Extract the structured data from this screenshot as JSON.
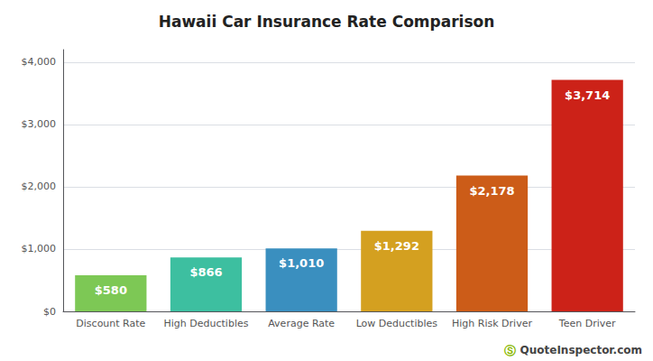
{
  "chart_data": {
    "type": "bar",
    "title": "Hawaii Car Insurance Rate Comparison",
    "categories": [
      "Discount Rate",
      "High Deductibles",
      "Average Rate",
      "Low Deductibles",
      "High Risk Driver",
      "Teen Driver"
    ],
    "values": [
      580,
      866,
      1010,
      1292,
      2178,
      3714
    ],
    "value_labels": [
      "$580",
      "$866",
      "$1,010",
      "$1,292",
      "$2,178",
      "$3,714"
    ],
    "data_labels": true,
    "colors": [
      "#7dc855",
      "#3dbfa0",
      "#3a8fbf",
      "#d4a020",
      "#cc5c18",
      "#cc2218"
    ],
    "ylim": [
      0,
      4200
    ],
    "yticks": [
      {
        "value": 0,
        "label": "$0"
      },
      {
        "value": 1000,
        "label": "$1,000"
      },
      {
        "value": 2000,
        "label": "$2,000"
      },
      {
        "value": 3000,
        "label": "$3,000"
      },
      {
        "value": 4000,
        "label": "$4,000"
      }
    ],
    "grid": true,
    "annotations": [
      {
        "text": "Ⓢ",
        "color": "#8ab800"
      },
      {
        "text": "QuoteInspector.com"
      }
    ]
  }
}
